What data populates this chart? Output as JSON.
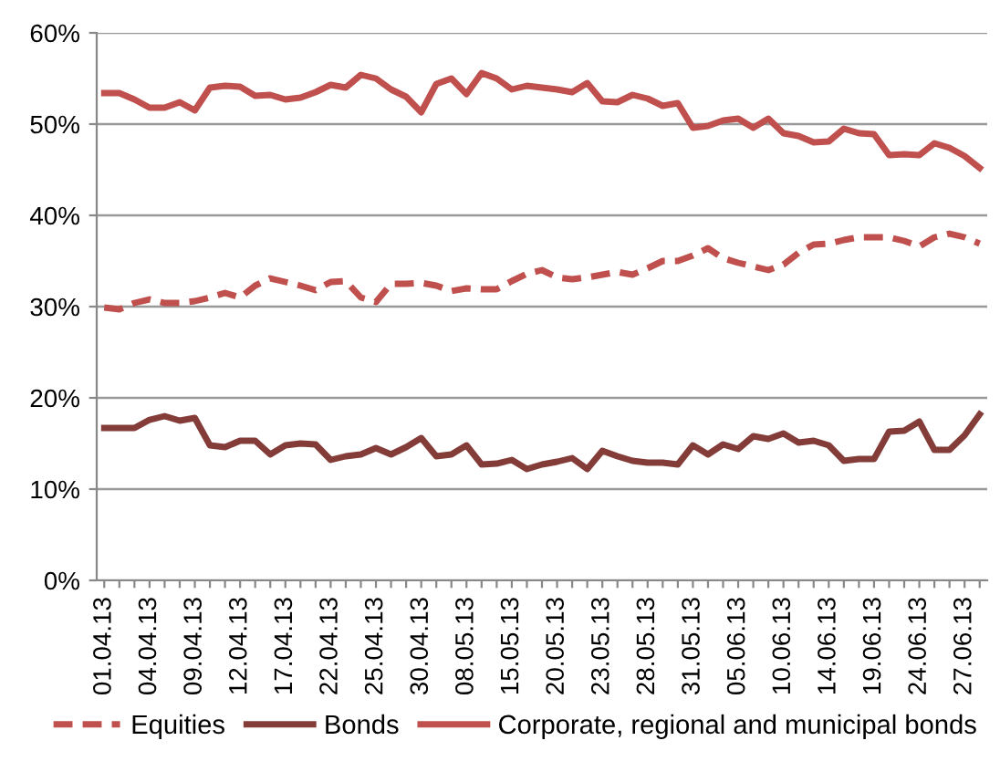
{
  "chart_data": {
    "type": "line",
    "categories": [
      "01.04.13",
      null,
      null,
      "04.04.13",
      null,
      null,
      "09.04.13",
      null,
      null,
      "12.04.13",
      null,
      null,
      "17.04.13",
      null,
      null,
      "22.04.13",
      null,
      null,
      "25.04.13",
      null,
      null,
      "30.04.13",
      null,
      null,
      "08.05.13",
      null,
      null,
      "15.05.13",
      null,
      null,
      "20.05.13",
      null,
      null,
      "23.05.13",
      null,
      null,
      "28.05.13",
      null,
      null,
      "31.05.13",
      null,
      null,
      "05.06.13",
      null,
      null,
      "10.06.13",
      null,
      null,
      "14.06.13",
      null,
      null,
      "19.06.13",
      null,
      null,
      "24.06.13",
      null,
      null,
      "27.06.13",
      null
    ],
    "series": [
      {
        "name": "Equities",
        "color": "#c0504d",
        "line_style": "dashed",
        "values": [
          29.9,
          29.7,
          30.4,
          30.8,
          30.4,
          30.4,
          30.6,
          31.0,
          31.5,
          31.0,
          32.3,
          33.1,
          32.7,
          32.3,
          31.8,
          32.7,
          32.8,
          31.0,
          30.5,
          32.5,
          32.5,
          32.6,
          32.3,
          31.7,
          32.0,
          31.9,
          31.9,
          32.8,
          33.6,
          34.0,
          33.2,
          33.0,
          33.2,
          33.5,
          33.8,
          33.5,
          34.2,
          35.0,
          35.0,
          35.6,
          36.4,
          35.3,
          34.8,
          34.4,
          34.0,
          34.6,
          35.9,
          36.8,
          36.9,
          37.3,
          37.6,
          37.6,
          37.6,
          37.2,
          36.6,
          37.6,
          38.0,
          37.6,
          36.9
        ]
      },
      {
        "name": "Bonds",
        "color": "#843c39",
        "line_style": "solid",
        "values": [
          16.7,
          16.7,
          16.7,
          17.6,
          18.0,
          17.5,
          17.8,
          14.8,
          14.6,
          15.3,
          15.3,
          13.8,
          14.8,
          15.0,
          14.9,
          13.2,
          13.6,
          13.8,
          14.5,
          13.8,
          14.6,
          15.6,
          13.6,
          13.8,
          14.8,
          12.7,
          12.8,
          13.2,
          12.2,
          12.7,
          13.0,
          13.4,
          12.2,
          14.2,
          13.6,
          13.1,
          12.9,
          12.9,
          12.7,
          14.8,
          13.8,
          14.9,
          14.4,
          15.8,
          15.5,
          16.1,
          15.1,
          15.3,
          14.8,
          13.1,
          13.3,
          13.3,
          16.3,
          16.4,
          17.4,
          14.3,
          14.3,
          15.9,
          18.2
        ]
      },
      {
        "name": "Corporate, regional and municipal bonds",
        "color": "#c0504d",
        "line_style": "solid",
        "values": [
          53.4,
          53.4,
          52.7,
          51.8,
          51.8,
          52.4,
          51.5,
          54.0,
          54.2,
          54.1,
          53.1,
          53.2,
          52.7,
          52.9,
          53.5,
          54.3,
          54.0,
          55.4,
          55.0,
          53.8,
          53.0,
          51.3,
          54.4,
          55.0,
          53.3,
          55.6,
          55.0,
          53.8,
          54.2,
          54.0,
          53.8,
          53.5,
          54.5,
          52.5,
          52.4,
          53.2,
          52.8,
          52.0,
          52.3,
          49.6,
          49.8,
          50.4,
          50.6,
          49.6,
          50.6,
          49.0,
          48.7,
          48.0,
          48.1,
          49.5,
          49.0,
          48.9,
          46.6,
          46.7,
          46.6,
          47.9,
          47.4,
          46.5,
          45.2
        ]
      }
    ],
    "ylim": [
      0,
      60
    ],
    "yticks": [
      {
        "value": 0,
        "label": "0%"
      },
      {
        "value": 10,
        "label": "10%"
      },
      {
        "value": 20,
        "label": "20%"
      },
      {
        "value": 30,
        "label": "30%"
      },
      {
        "value": 40,
        "label": "40%"
      },
      {
        "value": 50,
        "label": "50%"
      },
      {
        "value": 60,
        "label": "60%"
      }
    ],
    "grid": "y",
    "legend": "bottom"
  }
}
